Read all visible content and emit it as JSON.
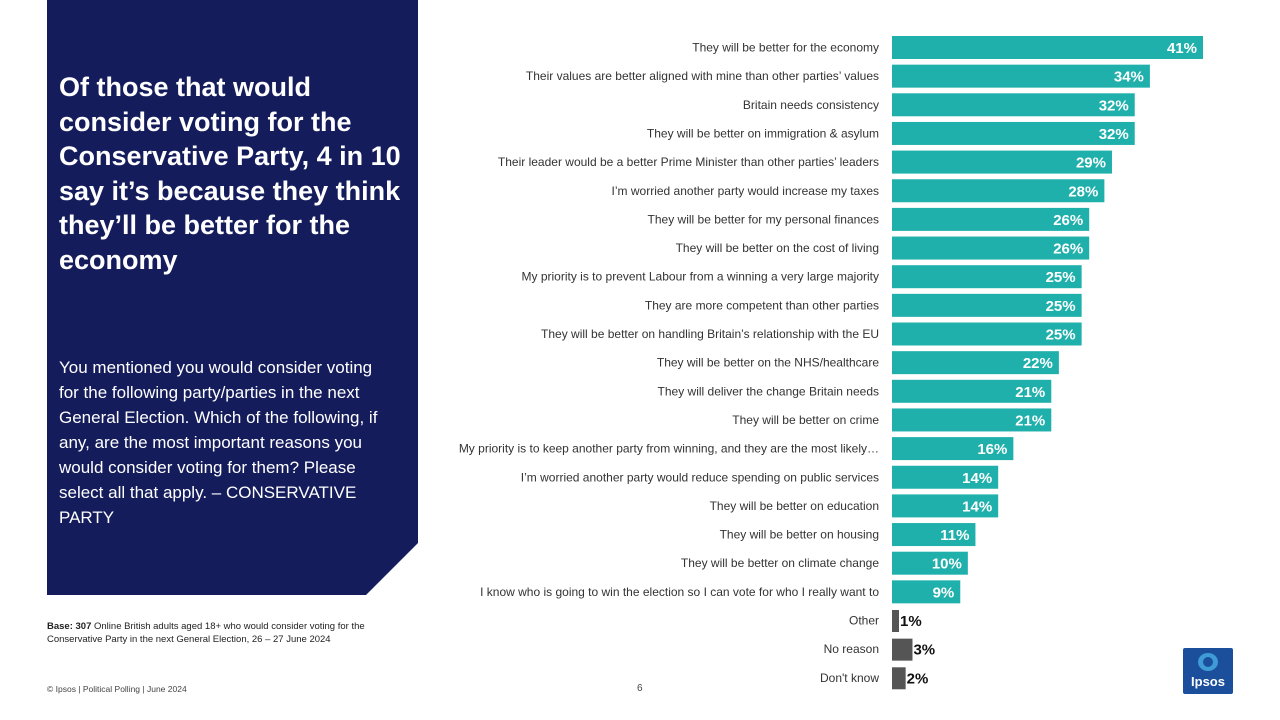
{
  "panel": {
    "title": "Of those that would consider voting for the Conservative Party, 4 in 10 say it’s because they think they’ll be better for the economy",
    "question": "You mentioned you would consider voting for the following party/parties in the next General Election. Which of the following, if any, are the most important reasons you would consider voting for them? Please select all that apply. – CONSERVATIVE PARTY"
  },
  "base_note": {
    "label": "Base: 307",
    "text": " Online British adults aged 18+ who would consider voting for the Conservative Party in the next General Election, 26 – 27 June 2024"
  },
  "footer": {
    "text": "© Ipsos | Political Polling | June 2024",
    "page": "6"
  },
  "logo": {
    "text": "Ipsos"
  },
  "colors": {
    "primary_bar": "#20b0ac",
    "secondary_bar": "#555555",
    "panel": "#141c5c"
  },
  "chart_data": {
    "type": "bar",
    "orientation": "horizontal",
    "title": "",
    "xlabel": "",
    "ylabel": "",
    "xlim": [
      0,
      41
    ],
    "categories": [
      "They will be better for the economy",
      "Their values are better aligned with mine than other parties’ values",
      "Britain needs consistency",
      "They will be better on immigration & asylum",
      "Their leader would be a better Prime Minister than other parties’ leaders",
      "I’m worried another party would increase my taxes",
      "They will be better for my personal finances",
      "They will be better on the cost of living",
      "My priority is to prevent Labour from a winning a very large majority",
      "They are more competent than other parties",
      "They will be better on handling Britain’s relationship with the EU",
      "They will be better on the NHS/healthcare",
      "They will deliver the change Britain needs",
      "They will be better on crime",
      "My priority is to keep another party from winning, and they are the most likely…",
      "I’m worried another party would reduce spending on public services",
      "They will be better on education",
      "They will be better on housing",
      "They will be better on climate change",
      "I know who is going to win the election so I can vote for who I really want to",
      "Other",
      "No reason",
      "Don't know"
    ],
    "values": [
      41,
      34,
      32,
      32,
      29,
      28,
      26,
      26,
      25,
      25,
      25,
      22,
      21,
      21,
      16,
      14,
      14,
      11,
      10,
      9,
      1,
      3,
      2
    ],
    "value_labels": [
      "41%",
      "34%",
      "32%",
      "32%",
      "29%",
      "28%",
      "26%",
      "26%",
      "25%",
      "25%",
      "25%",
      "22%",
      "21%",
      "21%",
      "16%",
      "14%",
      "14%",
      "11%",
      "10%",
      "9%",
      "1%",
      "3%",
      "2%"
    ],
    "highlight_last_n": 3
  }
}
